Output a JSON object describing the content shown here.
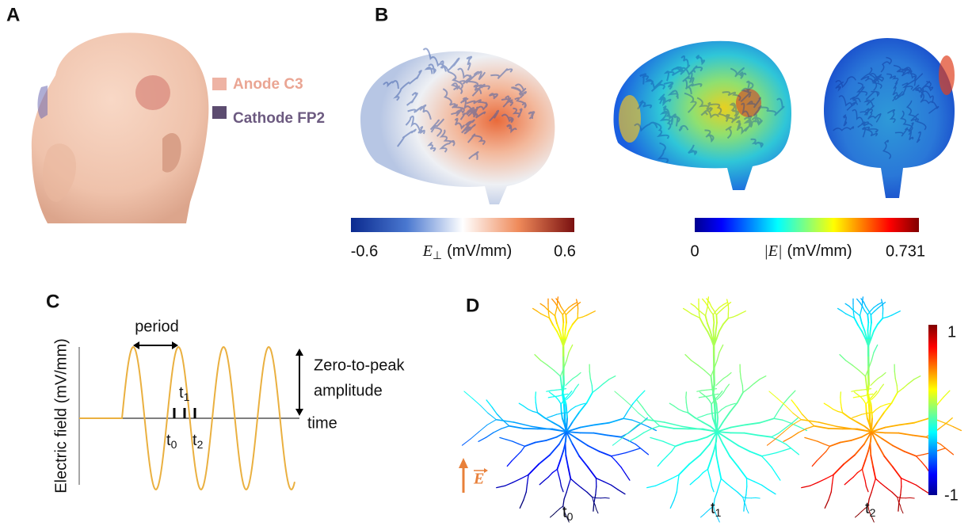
{
  "panels": {
    "a": "A",
    "b": "B",
    "c": "C",
    "d": "D"
  },
  "legend": [
    {
      "label": "Anode C3"
    },
    {
      "label": "Cathode FP2"
    }
  ],
  "colorbar_perp": {
    "min": "-0.6",
    "max": "0.6",
    "symbol": "E",
    "sub": "⊥",
    "unit": "(mV/mm)"
  },
  "colorbar_mag": {
    "min": "0",
    "max": "0.731",
    "symbol": "|E|",
    "unit": "(mV/mm)"
  },
  "waveform": {
    "period": "period",
    "y_label": "Electric field (mV/mm)",
    "amplitude": [
      "Zero-to-peak",
      "amplitude"
    ],
    "x_label": "time",
    "times": [
      {
        "base": "t",
        "sub": "0"
      },
      {
        "base": "t",
        "sub": "1"
      },
      {
        "base": "t",
        "sub": "2"
      }
    ]
  },
  "neurons": {
    "colorbar_max": "1",
    "colorbar_min": "-1",
    "field": "E",
    "times": [
      {
        "base": "t",
        "sub": "0"
      },
      {
        "base": "t",
        "sub": "1"
      },
      {
        "base": "t",
        "sub": "2"
      }
    ]
  }
}
